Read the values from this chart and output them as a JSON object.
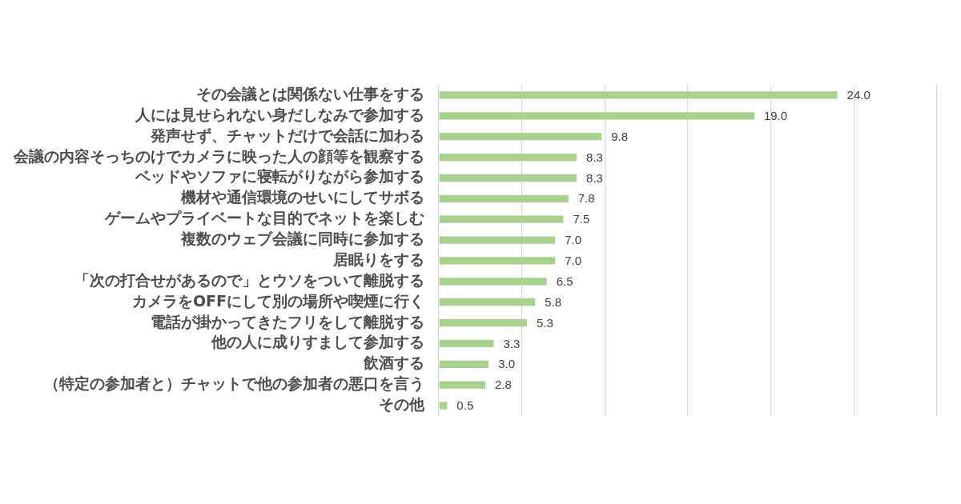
{
  "chart_data": {
    "type": "bar",
    "orientation": "horizontal",
    "categories": [
      "その会議とは関係ない仕事をする",
      "人には見せられない身だしなみで参加する",
      "発声せず、チャットだけで会話に加わる",
      "会議の内容そっちのけでカメラに映った人の顔等を観察する",
      "ベッドやソファに寝転がりながら参加する",
      "機材や通信環境のせいにしてサボる",
      "ゲームやプライベートな目的でネットを楽しむ",
      "複数のウェブ会議に同時に参加する",
      "居眠りをする",
      "「次の打合せがあるので」とウソをついて離脱する",
      "カメラをOFFにして別の場所や喫煙に行く",
      "電話が掛かってきたフリをして離脱する",
      "他の人に成りすまして参加する",
      "飲酒する",
      "（特定の参加者と）チャットで他の参加者の悪口を言う",
      "その他"
    ],
    "values": [
      24.0,
      19.0,
      9.8,
      8.3,
      8.3,
      7.8,
      7.5,
      7.0,
      7.0,
      6.5,
      5.8,
      5.3,
      3.3,
      3.0,
      2.8,
      0.5
    ],
    "color": "#a9d18e",
    "value_labels": [
      "24.0",
      "19.0",
      "9.8",
      "8.3",
      "8.3",
      "7.8",
      "7.5",
      "7.0",
      "7.0",
      "6.5",
      "5.8",
      "5.3",
      "3.3",
      "3.0",
      "2.8",
      "0.5"
    ],
    "xlim": [
      0,
      30
    ],
    "xticks": [
      {
        "value": 0,
        "label": null
      },
      {
        "value": 5,
        "label": null
      },
      {
        "value": 10,
        "label": null
      },
      {
        "value": 15,
        "label": null
      },
      {
        "value": 20,
        "label": null
      },
      {
        "value": 25,
        "label": null
      },
      {
        "value": 30,
        "label": null
      }
    ],
    "grid": "x",
    "tick_labels": "y"
  }
}
